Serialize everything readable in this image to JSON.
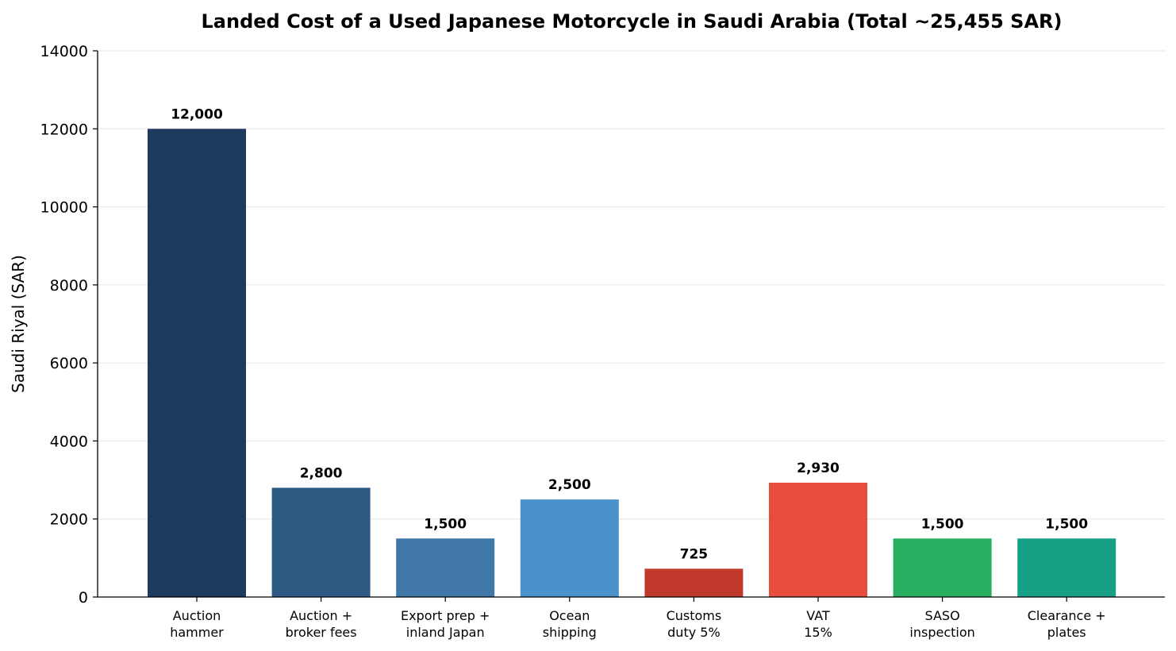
{
  "chart_data": {
    "type": "bar",
    "title": "Landed Cost of a Used Japanese Motorcycle in Saudi Arabia  (Total ~25,455 SAR)",
    "xlabel": "",
    "ylabel": "Saudi Riyal (SAR)",
    "ylim": [
      0,
      14000
    ],
    "yticks": [
      0,
      2000,
      4000,
      6000,
      8000,
      10000,
      12000,
      14000
    ],
    "grid": true,
    "categories": [
      [
        "Auction",
        "hammer"
      ],
      [
        "Auction +",
        "broker fees"
      ],
      [
        "Export prep +",
        "inland Japan"
      ],
      [
        "Ocean",
        "shipping"
      ],
      [
        "Customs",
        "duty 5%"
      ],
      [
        "VAT",
        "15%"
      ],
      [
        "SASO",
        "inspection"
      ],
      [
        "Clearance +",
        "plates"
      ]
    ],
    "values": [
      12000,
      2800,
      1500,
      2500,
      725,
      2930,
      1500,
      1500
    ],
    "value_labels": [
      "12,000",
      "2,800",
      "1,500",
      "2,500",
      "725",
      "2,930",
      "1,500",
      "1,500"
    ],
    "colors": [
      "#1f3a5f",
      "#2e5a84",
      "#3e77a8",
      "#4a92cc",
      "#c0392b",
      "#e74c3c",
      "#27ae60",
      "#16a085"
    ]
  }
}
